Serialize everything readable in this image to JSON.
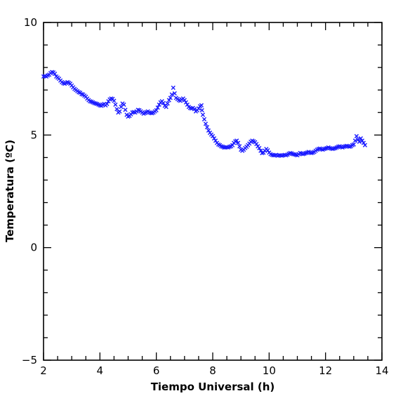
{
  "chart_data": {
    "type": "scatter",
    "marker": "x",
    "marker_color": "#1a1aff",
    "xlabel": "Tiempo Universal (h)",
    "ylabel": "Temperatura (ºC)",
    "xlim": [
      2,
      14
    ],
    "ylim": [
      -5,
      10
    ],
    "xticks": [
      2,
      4,
      6,
      8,
      10,
      12,
      14
    ],
    "yticks": [
      -5,
      0,
      5,
      10
    ],
    "grid": false,
    "series": [
      {
        "points": [
          [
            2.0,
            7.6
          ],
          [
            2.05,
            7.62
          ],
          [
            2.1,
            7.6
          ],
          [
            2.15,
            7.65
          ],
          [
            2.2,
            7.68
          ],
          [
            2.25,
            7.75
          ],
          [
            2.3,
            7.8
          ],
          [
            2.35,
            7.78
          ],
          [
            2.4,
            7.72
          ],
          [
            2.45,
            7.6
          ],
          [
            2.5,
            7.55
          ],
          [
            2.55,
            7.5
          ],
          [
            2.6,
            7.42
          ],
          [
            2.65,
            7.35
          ],
          [
            2.7,
            7.3
          ],
          [
            2.75,
            7.28
          ],
          [
            2.8,
            7.32
          ],
          [
            2.85,
            7.35
          ],
          [
            2.9,
            7.32
          ],
          [
            2.95,
            7.28
          ],
          [
            3.0,
            7.2
          ],
          [
            3.05,
            7.12
          ],
          [
            3.1,
            7.05
          ],
          [
            3.15,
            7.0
          ],
          [
            3.2,
            6.95
          ],
          [
            3.25,
            6.9
          ],
          [
            3.3,
            6.88
          ],
          [
            3.35,
            6.82
          ],
          [
            3.4,
            6.8
          ],
          [
            3.45,
            6.75
          ],
          [
            3.5,
            6.7
          ],
          [
            3.55,
            6.62
          ],
          [
            3.6,
            6.55
          ],
          [
            3.65,
            6.5
          ],
          [
            3.7,
            6.48
          ],
          [
            3.75,
            6.45
          ],
          [
            3.8,
            6.42
          ],
          [
            3.85,
            6.4
          ],
          [
            3.9,
            6.38
          ],
          [
            3.95,
            6.35
          ],
          [
            4.0,
            6.32
          ],
          [
            4.05,
            6.3
          ],
          [
            4.1,
            6.35
          ],
          [
            4.15,
            6.38
          ],
          [
            4.2,
            6.32
          ],
          [
            4.25,
            6.38
          ],
          [
            4.3,
            6.5
          ],
          [
            4.35,
            6.58
          ],
          [
            4.4,
            6.62
          ],
          [
            4.45,
            6.6
          ],
          [
            4.5,
            6.52
          ],
          [
            4.55,
            6.35
          ],
          [
            4.6,
            6.15
          ],
          [
            4.65,
            6.0
          ],
          [
            4.7,
            6.05
          ],
          [
            4.75,
            6.25
          ],
          [
            4.8,
            6.4
          ],
          [
            4.85,
            6.35
          ],
          [
            4.9,
            6.12
          ],
          [
            4.95,
            5.9
          ],
          [
            5.0,
            5.82
          ],
          [
            5.05,
            5.85
          ],
          [
            5.1,
            5.92
          ],
          [
            5.15,
            6.0
          ],
          [
            5.2,
            6.02
          ],
          [
            5.25,
            6.0
          ],
          [
            5.3,
            6.05
          ],
          [
            5.35,
            6.12
          ],
          [
            5.4,
            6.1
          ],
          [
            5.45,
            6.05
          ],
          [
            5.5,
            6.0
          ],
          [
            5.55,
            5.95
          ],
          [
            5.6,
            5.98
          ],
          [
            5.65,
            6.02
          ],
          [
            5.7,
            6.05
          ],
          [
            5.75,
            6.0
          ],
          [
            5.8,
            5.98
          ],
          [
            5.85,
            5.97
          ],
          [
            5.9,
            6.0
          ],
          [
            5.95,
            6.05
          ],
          [
            6.0,
            6.1
          ],
          [
            6.05,
            6.22
          ],
          [
            6.1,
            6.35
          ],
          [
            6.15,
            6.45
          ],
          [
            6.2,
            6.5
          ],
          [
            6.25,
            6.42
          ],
          [
            6.3,
            6.3
          ],
          [
            6.35,
            6.25
          ],
          [
            6.4,
            6.4
          ],
          [
            6.45,
            6.55
          ],
          [
            6.5,
            6.65
          ],
          [
            6.55,
            6.8
          ],
          [
            6.6,
            7.1
          ],
          [
            6.65,
            6.85
          ],
          [
            6.7,
            6.65
          ],
          [
            6.75,
            6.6
          ],
          [
            6.8,
            6.55
          ],
          [
            6.85,
            6.52
          ],
          [
            6.9,
            6.58
          ],
          [
            6.95,
            6.62
          ],
          [
            7.0,
            6.55
          ],
          [
            7.05,
            6.45
          ],
          [
            7.1,
            6.35
          ],
          [
            7.15,
            6.25
          ],
          [
            7.2,
            6.2
          ],
          [
            7.25,
            6.18
          ],
          [
            7.3,
            6.2
          ],
          [
            7.35,
            6.15
          ],
          [
            7.4,
            6.05
          ],
          [
            7.45,
            6.1
          ],
          [
            7.5,
            6.18
          ],
          [
            7.55,
            6.28
          ],
          [
            7.6,
            6.32
          ],
          [
            7.62,
            6.1
          ],
          [
            7.65,
            5.9
          ],
          [
            7.7,
            5.7
          ],
          [
            7.75,
            5.5
          ],
          [
            7.8,
            5.35
          ],
          [
            7.85,
            5.2
          ],
          [
            7.9,
            5.1
          ],
          [
            7.95,
            5.02
          ],
          [
            8.0,
            4.95
          ],
          [
            8.05,
            4.85
          ],
          [
            8.1,
            4.75
          ],
          [
            8.15,
            4.65
          ],
          [
            8.2,
            4.58
          ],
          [
            8.25,
            4.55
          ],
          [
            8.3,
            4.5
          ],
          [
            8.35,
            4.48
          ],
          [
            8.4,
            4.45
          ],
          [
            8.45,
            4.45
          ],
          [
            8.5,
            4.46
          ],
          [
            8.55,
            4.45
          ],
          [
            8.6,
            4.48
          ],
          [
            8.65,
            4.5
          ],
          [
            8.7,
            4.55
          ],
          [
            8.75,
            4.65
          ],
          [
            8.8,
            4.72
          ],
          [
            8.85,
            4.75
          ],
          [
            8.9,
            4.65
          ],
          [
            8.95,
            4.5
          ],
          [
            9.0,
            4.35
          ],
          [
            9.05,
            4.3
          ],
          [
            9.1,
            4.35
          ],
          [
            9.15,
            4.42
          ],
          [
            9.2,
            4.48
          ],
          [
            9.25,
            4.55
          ],
          [
            9.3,
            4.62
          ],
          [
            9.35,
            4.7
          ],
          [
            9.4,
            4.75
          ],
          [
            9.45,
            4.72
          ],
          [
            9.5,
            4.68
          ],
          [
            9.55,
            4.6
          ],
          [
            9.6,
            4.5
          ],
          [
            9.65,
            4.42
          ],
          [
            9.7,
            4.3
          ],
          [
            9.75,
            4.2
          ],
          [
            9.8,
            4.22
          ],
          [
            9.85,
            4.3
          ],
          [
            9.9,
            4.38
          ],
          [
            9.95,
            4.32
          ],
          [
            10.0,
            4.22
          ],
          [
            10.05,
            4.15
          ],
          [
            10.1,
            4.12
          ],
          [
            10.15,
            4.1
          ],
          [
            10.2,
            4.1
          ],
          [
            10.25,
            4.12
          ],
          [
            10.3,
            4.08
          ],
          [
            10.35,
            4.1
          ],
          [
            10.4,
            4.1
          ],
          [
            10.45,
            4.08
          ],
          [
            10.5,
            4.1
          ],
          [
            10.55,
            4.12
          ],
          [
            10.6,
            4.1
          ],
          [
            10.65,
            4.13
          ],
          [
            10.7,
            4.17
          ],
          [
            10.75,
            4.2
          ],
          [
            10.8,
            4.18
          ],
          [
            10.85,
            4.15
          ],
          [
            10.9,
            4.14
          ],
          [
            10.95,
            4.12
          ],
          [
            11.0,
            4.1
          ],
          [
            11.05,
            4.15
          ],
          [
            11.1,
            4.2
          ],
          [
            11.15,
            4.18
          ],
          [
            11.2,
            4.15
          ],
          [
            11.25,
            4.17
          ],
          [
            11.3,
            4.2
          ],
          [
            11.35,
            4.22
          ],
          [
            11.4,
            4.25
          ],
          [
            11.45,
            4.22
          ],
          [
            11.5,
            4.2
          ],
          [
            11.55,
            4.22
          ],
          [
            11.6,
            4.25
          ],
          [
            11.65,
            4.3
          ],
          [
            11.7,
            4.35
          ],
          [
            11.75,
            4.38
          ],
          [
            11.8,
            4.4
          ],
          [
            11.85,
            4.37
          ],
          [
            11.9,
            4.35
          ],
          [
            11.95,
            4.38
          ],
          [
            12.0,
            4.4
          ],
          [
            12.05,
            4.42
          ],
          [
            12.1,
            4.45
          ],
          [
            12.15,
            4.42
          ],
          [
            12.2,
            4.4
          ],
          [
            12.25,
            4.38
          ],
          [
            12.3,
            4.4
          ],
          [
            12.35,
            4.42
          ],
          [
            12.4,
            4.45
          ],
          [
            12.45,
            4.48
          ],
          [
            12.5,
            4.5
          ],
          [
            12.55,
            4.47
          ],
          [
            12.6,
            4.45
          ],
          [
            12.65,
            4.48
          ],
          [
            12.7,
            4.5
          ],
          [
            12.75,
            4.52
          ],
          [
            12.8,
            4.5
          ],
          [
            12.85,
            4.48
          ],
          [
            12.9,
            4.5
          ],
          [
            12.95,
            4.55
          ],
          [
            13.0,
            4.58
          ],
          [
            13.05,
            4.75
          ],
          [
            13.1,
            4.95
          ],
          [
            13.15,
            4.8
          ],
          [
            13.2,
            4.7
          ],
          [
            13.25,
            4.85
          ],
          [
            13.3,
            4.75
          ],
          [
            13.35,
            4.65
          ],
          [
            13.4,
            4.55
          ]
        ]
      }
    ]
  }
}
